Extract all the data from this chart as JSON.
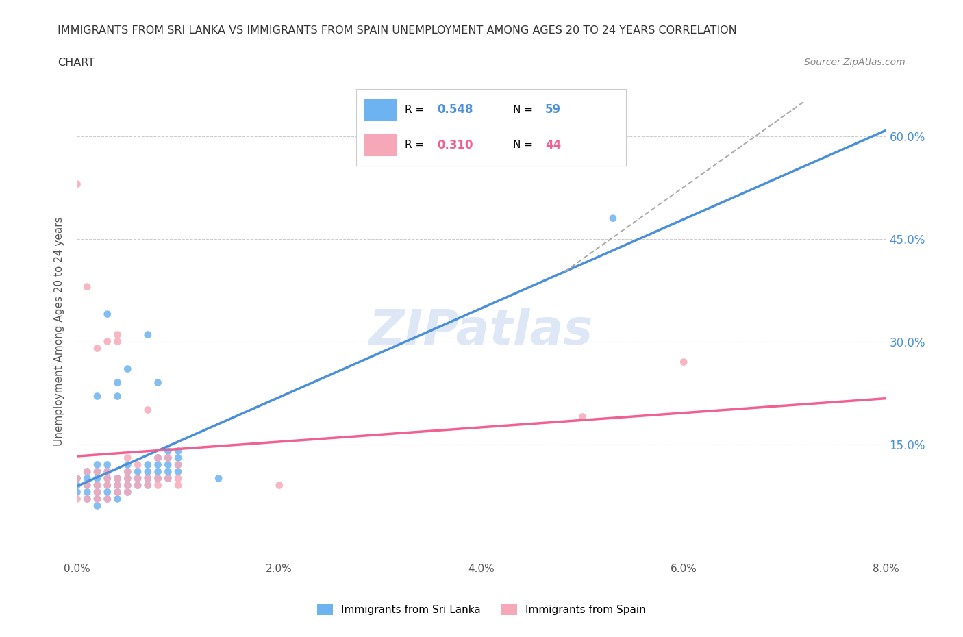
{
  "title_line1": "IMMIGRANTS FROM SRI LANKA VS IMMIGRANTS FROM SPAIN UNEMPLOYMENT AMONG AGES 20 TO 24 YEARS CORRELATION",
  "title_line2": "CHART",
  "source_text": "Source: ZipAtlas.com",
  "xlabel": "",
  "ylabel": "Unemployment Among Ages 20 to 24 years",
  "xlim": [
    0.0,
    0.08
  ],
  "ylim": [
    -0.02,
    0.65
  ],
  "xticks": [
    0.0,
    0.02,
    0.04,
    0.06,
    0.08
  ],
  "xtick_labels": [
    "0.0%",
    "2.0%",
    "4.0%",
    "6.0%",
    "8.0%"
  ],
  "ytick_positions": [
    0.15,
    0.3,
    0.45,
    0.6
  ],
  "ytick_labels": [
    "15.0%",
    "30.0%",
    "45.0%",
    "60.0%"
  ],
  "sri_lanka_color": "#6db3f2",
  "spain_color": "#f7a8b8",
  "sri_lanka_line_color": "#4a90d9",
  "spain_line_color": "#f06090",
  "dashed_line_color": "#aaaaaa",
  "R_sri_lanka": 0.548,
  "N_sri_lanka": 59,
  "R_spain": 0.31,
  "N_spain": 44,
  "watermark_text": "ZIPatlas",
  "watermark_color": "#c8d8f0",
  "legend_label_sri": "Immigrants from Sri Lanka",
  "legend_label_spain": "Immigrants from Spain",
  "sri_lanka_x": [
    0.0,
    0.0,
    0.0,
    0.001,
    0.001,
    0.001,
    0.001,
    0.001,
    0.002,
    0.002,
    0.002,
    0.002,
    0.002,
    0.002,
    0.002,
    0.002,
    0.003,
    0.003,
    0.003,
    0.003,
    0.003,
    0.003,
    0.003,
    0.004,
    0.004,
    0.004,
    0.004,
    0.004,
    0.004,
    0.005,
    0.005,
    0.005,
    0.005,
    0.005,
    0.005,
    0.006,
    0.006,
    0.006,
    0.007,
    0.007,
    0.007,
    0.007,
    0.007,
    0.008,
    0.008,
    0.008,
    0.008,
    0.008,
    0.009,
    0.009,
    0.009,
    0.009,
    0.009,
    0.01,
    0.01,
    0.01,
    0.01,
    0.014,
    0.053
  ],
  "sri_lanka_y": [
    0.08,
    0.09,
    0.1,
    0.07,
    0.08,
    0.09,
    0.1,
    0.11,
    0.06,
    0.07,
    0.08,
    0.09,
    0.1,
    0.11,
    0.12,
    0.22,
    0.07,
    0.08,
    0.09,
    0.1,
    0.11,
    0.12,
    0.34,
    0.07,
    0.08,
    0.09,
    0.1,
    0.22,
    0.24,
    0.08,
    0.09,
    0.1,
    0.11,
    0.12,
    0.26,
    0.09,
    0.1,
    0.11,
    0.09,
    0.1,
    0.11,
    0.12,
    0.31,
    0.1,
    0.11,
    0.12,
    0.13,
    0.24,
    0.1,
    0.11,
    0.12,
    0.13,
    0.14,
    0.11,
    0.12,
    0.13,
    0.14,
    0.1,
    0.48
  ],
  "spain_x": [
    0.0,
    0.0,
    0.0,
    0.001,
    0.001,
    0.001,
    0.001,
    0.002,
    0.002,
    0.002,
    0.002,
    0.002,
    0.003,
    0.003,
    0.003,
    0.003,
    0.003,
    0.004,
    0.004,
    0.004,
    0.004,
    0.004,
    0.005,
    0.005,
    0.005,
    0.005,
    0.005,
    0.006,
    0.006,
    0.006,
    0.007,
    0.007,
    0.007,
    0.008,
    0.008,
    0.008,
    0.009,
    0.009,
    0.01,
    0.01,
    0.01,
    0.02,
    0.05,
    0.06
  ],
  "spain_y": [
    0.07,
    0.1,
    0.53,
    0.07,
    0.09,
    0.11,
    0.38,
    0.07,
    0.08,
    0.09,
    0.11,
    0.29,
    0.07,
    0.09,
    0.1,
    0.11,
    0.3,
    0.08,
    0.09,
    0.1,
    0.3,
    0.31,
    0.08,
    0.09,
    0.1,
    0.11,
    0.13,
    0.09,
    0.1,
    0.12,
    0.09,
    0.1,
    0.2,
    0.09,
    0.1,
    0.13,
    0.1,
    0.13,
    0.09,
    0.1,
    0.12,
    0.09,
    0.19,
    0.27
  ]
}
